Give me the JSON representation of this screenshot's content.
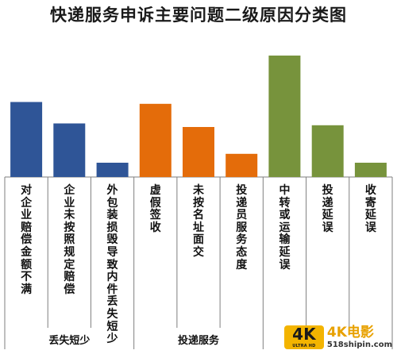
{
  "chart_data": {
    "type": "bar",
    "title": "快递服务申诉主要问题二级原因分类图",
    "categories": [
      "对企业赔偿金额不满",
      "企业未按照规定赔偿",
      "外包装损毁导致内件丢失短少",
      "虚假签收",
      "未按名址面交",
      "投递员服务态度",
      "中转或运输延误",
      "投递延误",
      "收寄延误"
    ],
    "values": [
      21,
      15,
      4,
      20.5,
      14,
      6.5,
      34,
      14.5,
      4
    ],
    "colors": [
      "#2f5597",
      "#2f5597",
      "#2f5597",
      "#e46c0a",
      "#e46c0a",
      "#e46c0a",
      "#77933c",
      "#77933c",
      "#77933c"
    ],
    "groups": [
      {
        "label": "丢失短少",
        "count": 3
      },
      {
        "label": "投递服务",
        "count": 3
      },
      {
        "label": "",
        "count": 3
      }
    ],
    "ylim": [
      0,
      36
    ],
    "grid": false,
    "legend": "none",
    "xlabel": "",
    "ylabel": ""
  },
  "watermark": {
    "badge": "4K",
    "badge_sub": "ULTRA HD",
    "main": "4K电影",
    "url": "518shipin.com"
  }
}
